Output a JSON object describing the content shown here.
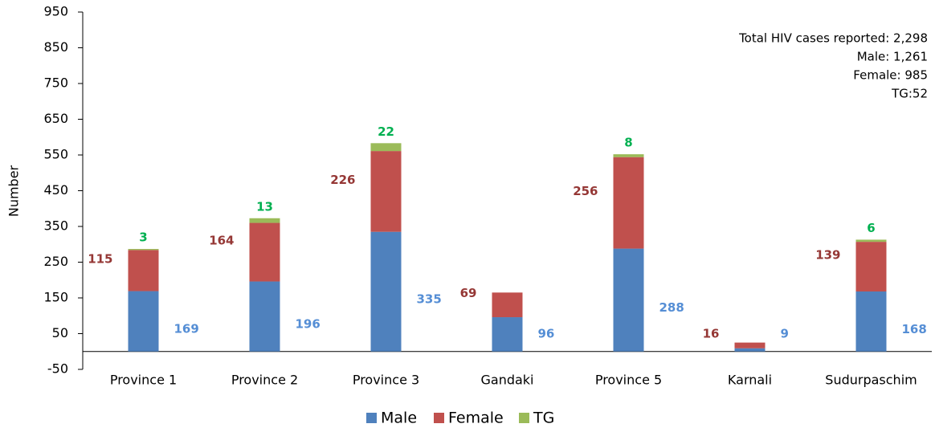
{
  "chart_data": {
    "type": "stacked_bar",
    "y_label": "Number",
    "categories": [
      "Province 1",
      "Province 2",
      "Province 3",
      "Gandaki",
      "Province 5",
      "Karnali",
      "Sudurpaschim"
    ],
    "series": [
      {
        "name": "Male",
        "color": "#4f81bd",
        "label_color": "#558ed5",
        "values": [
          169,
          196,
          335,
          96,
          288,
          9,
          168
        ]
      },
      {
        "name": "Female",
        "color": "#c0504d",
        "label_color": "#953735",
        "values": [
          115,
          164,
          226,
          69,
          256,
          16,
          139
        ]
      },
      {
        "name": "TG",
        "color": "#9bbb59",
        "label_color": "#00b050",
        "values": [
          3,
          13,
          22,
          null,
          8,
          null,
          6
        ]
      }
    ],
    "ylim": [
      -50,
      950
    ],
    "yticks": [
      -50,
      50,
      150,
      250,
      350,
      450,
      550,
      650,
      750,
      850,
      950
    ],
    "annotations": [
      "Total HIV cases reported: 2,298",
      "Male: 1,261",
      "Female: 985",
      "TG:52"
    ],
    "legend": "bottom"
  }
}
